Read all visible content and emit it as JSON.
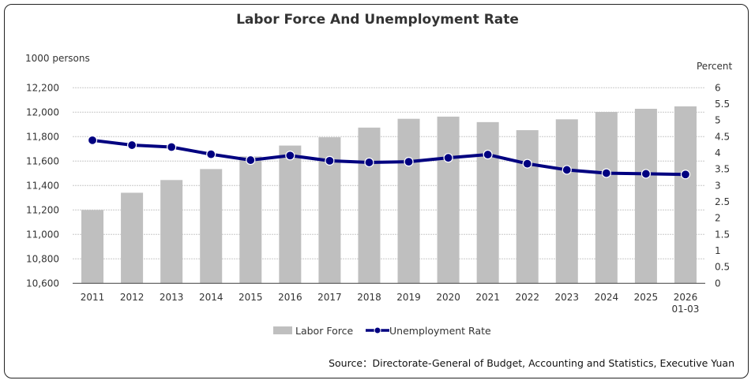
{
  "chart_data": {
    "type": "bar+line",
    "title": "Labor Force And Unemployment Rate",
    "categories": [
      "2011",
      "2012",
      "2013",
      "2014",
      "2015",
      "2016",
      "2017",
      "2018",
      "2019",
      "2020",
      "2021",
      "2022",
      "2023",
      "2024",
      "2025",
      "2026\n01-03"
    ],
    "series": [
      {
        "name": "Labor Force",
        "type": "bar",
        "axis": "left",
        "color": "#BFBFBF",
        "values": [
          11200,
          11341,
          11445,
          11535,
          11638,
          11727,
          11795,
          11874,
          11946,
          11964,
          11919,
          11853,
          11942,
          12002,
          12028,
          12048
        ]
      },
      {
        "name": "Unemployment Rate",
        "type": "line",
        "axis": "right",
        "color": "#000080",
        "values": [
          4.39,
          4.24,
          4.18,
          3.96,
          3.78,
          3.92,
          3.76,
          3.71,
          3.73,
          3.85,
          3.95,
          3.67,
          3.48,
          3.38,
          3.36,
          3.34
        ]
      }
    ],
    "ylabel": "1000 persons",
    "ylim": [
      10600,
      12200
    ],
    "yticks": [
      "10,600",
      "10,800",
      "11,000",
      "11,200",
      "11,400",
      "11,600",
      "11,800",
      "12,000",
      "12,200"
    ],
    "y2label": "Percent",
    "y2lim": [
      0,
      6
    ],
    "y2ticks": [
      "0",
      "0.5",
      "1",
      "1.5",
      "2",
      "2.5",
      "3",
      "3.5",
      "4",
      "4.5",
      "5",
      "5.5",
      "6"
    ],
    "grid": true,
    "legend": "bottom"
  },
  "source": "Source：Directorate-General of Budget, Accounting and Statistics, Executive Yuan"
}
